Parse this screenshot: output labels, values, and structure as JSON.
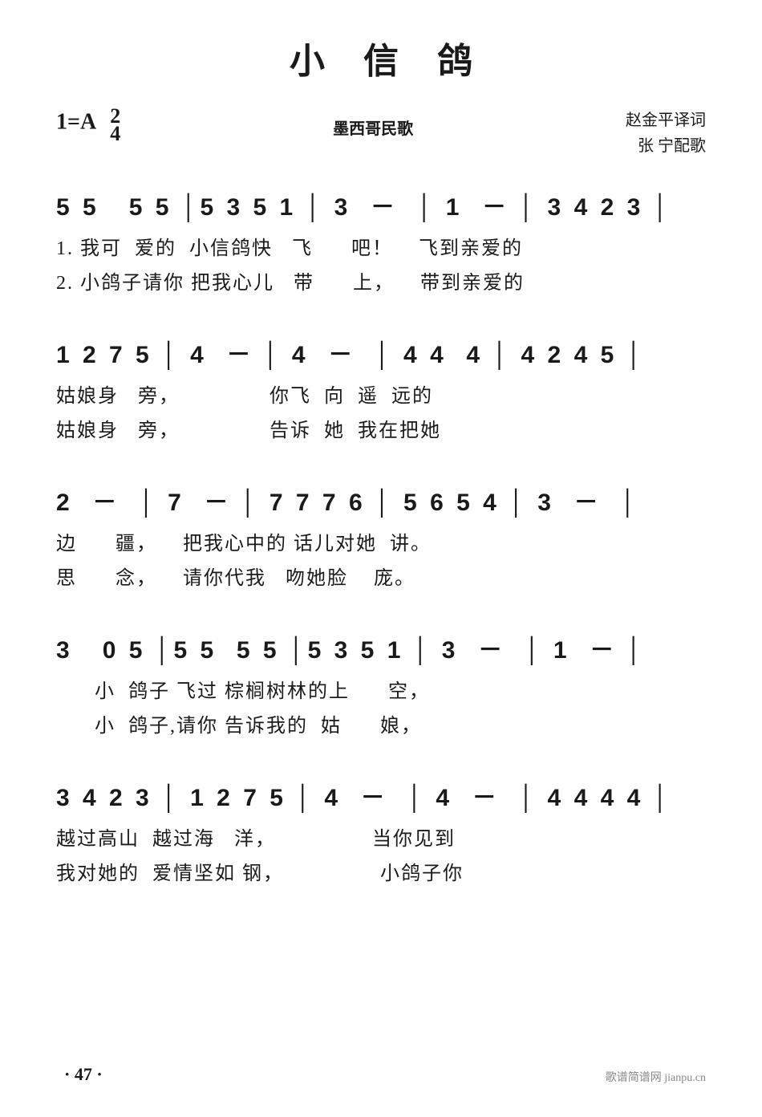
{
  "title": "小信鸽",
  "key_signature": "1=A",
  "time_signature_top": "2",
  "time_signature_bottom": "4",
  "subtitle": "墨西哥民歌",
  "credits_line1": "赵金平译词",
  "credits_line2": "张 宁配歌",
  "lines": [
    {
      "notes": "5 5   5 5 │5 3 5 1 │ 3  －  │ 1  － │ 3 4 2 3 │",
      "lyric1": "1. 我可  爱的  小信鸽快   飞      吧！    飞到亲爱的",
      "lyric2": "2. 小鸽子请你 把我心儿   带      上，    带到亲爱的"
    },
    {
      "notes": "1 2 7 5 │ 4  － │ 4  －  │ 4 4  4 │ 4 2 4 5 │",
      "lyric1": "姑娘身   旁，              你飞  向  遥  远的",
      "lyric2": "姑娘身   旁，              告诉  她  我在把她"
    },
    {
      "notes": "2  －  │ 7  － │ 7 7 7 6 │ 5 6 5 4 │ 3  －  │",
      "lyric1": "边      疆，    把我心中的 话儿对她  讲。",
      "lyric2": "思      念，    请你代我   吻她脸    庞。"
    },
    {
      "notes": "3   0 5 │5 5  5 5 │5 3 5 1 │ 3  －  │ 1  － │",
      "lyric1": "      小  鸽子 飞过 棕榈树林的上      空，",
      "lyric2": "      小  鸽子,请你 告诉我的  姑      娘，"
    },
    {
      "notes": "3 4 2 3 │ 1 2 7 5 │ 4  －  │ 4  －  │ 4 4 4 4 │",
      "lyric1": "越过高山  越过海   洋，               当你见到",
      "lyric2": "我对她的  爱情坚如 钢，               小鸽子你"
    }
  ],
  "page_number": "· 47 ·",
  "watermark": "歌谱简谱网 jianpu.cn",
  "colors": {
    "text": "#1a1a1a",
    "background": "#ffffff",
    "watermark": "#888888"
  },
  "fonts": {
    "title_size": 44,
    "notes_size": 30,
    "lyrics_size": 24,
    "header_size": 20
  }
}
